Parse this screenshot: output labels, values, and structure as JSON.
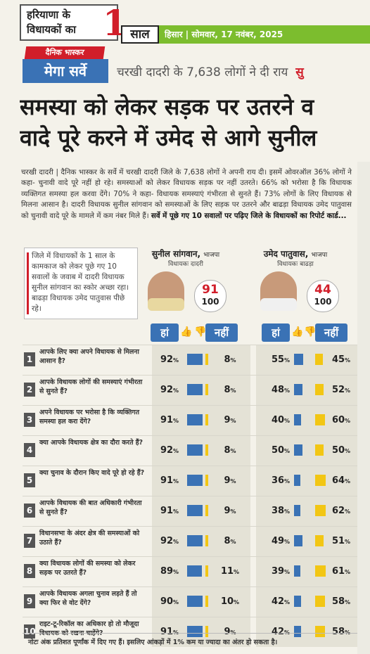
{
  "masthead": {
    "series_line1": "हरियाणा के",
    "series_line2": "विधायकों का",
    "series_num": "1",
    "series_word": "साल",
    "dateline": "हिसार | सोमवार, 17 नवंबर, 2025",
    "brand": "दैनिक भास्कर",
    "survey": "मेगा सर्वे",
    "subhead": "चरखी दादरी के 7,638 लोगों ने दी राय",
    "subhead_cut": "सु"
  },
  "headline": [
    "समस्या को लेकर सड़क पर उतरने व",
    "वादे पूरे करने में उमेद से आगे सुनील"
  ],
  "body_text": "चरखी दादरी | दैनिक भास्कर के सर्वे में चरखी दादरी जिले के 7,638 लोगों ने अपनी राय दी। इसमें ओवरऑल 36% लोगों ने कहा- चुनावी वादे पूरे नहीं हो रहे। समस्याओं को लेकर विधायक सड़क पर नहीं उतरते। 66% को भरोसा है कि विधायक व्यक्तिगत समस्या हल करवा देंगे। 70% ने कहा- विधायक समस्याएं गंभीरता से सुनते हैं। 73% लोगों के लिए विधायक से मिलना आसान है। दादरी विधायक सुनील सांगवान को समस्याओं के लिए सड़क पर उतरने और बाढड़ा विधायक उमेद पातुवास को चुनावी वादे पूरे के मामले में कम नंबर मिले हैं।",
  "body_bold": "सर्वे में पूछे गए 10 सवालों पर पढ़िए जिले के विधायकों का रिपोर्ट कार्ड...",
  "intro": "जिले में विधायकों के 1 साल के कामकाज को लेकर पूछे गए 10 सवालों के जवाब में दादरी विधायक सुनील सांगवान का स्कोर अच्छा रहा। बाढड़ा विधायक उमेद पातुवास पीछे रहे।",
  "candidates": [
    {
      "name": "सुनील सांगवान,",
      "party": "भाजपा",
      "role": "विधायकः दादरी",
      "score": "91",
      "total": "100"
    },
    {
      "name": "उमेद पातुवास,",
      "party": "भाजपा",
      "role": "विधायकः बाढड़ा",
      "score": "44",
      "total": "100"
    }
  ],
  "labels": {
    "yes": "हां",
    "no": "नहीं",
    "pct": "%"
  },
  "colors": {
    "yes": "#3a72b5",
    "no": "#f2c614",
    "highlight": "#d11e2a",
    "green": "#7cbd2e"
  },
  "questions": [
    {
      "num": "1",
      "text": "आपके लिए क्या अपने विधायक से मिलना आसान है?",
      "c1_yes": 92,
      "c1_no": 8,
      "c2_yes": 55,
      "c2_no": 45
    },
    {
      "num": "2",
      "text": "आपके विधायक लोगों की समस्याएं गंभीरता से सुनते हैं?",
      "c1_yes": 92,
      "c1_no": 8,
      "c2_yes": 48,
      "c2_no": 52
    },
    {
      "num": "3",
      "text": "अपने विधायक पर भरोसा है कि व्यक्तिगत समस्या हल करा देंगे?",
      "c1_yes": 91,
      "c1_no": 9,
      "c2_yes": 40,
      "c2_no": 60
    },
    {
      "num": "4",
      "text": "क्या आपके विधायक क्षेत्र का दौरा करते हैं?",
      "c1_yes": 92,
      "c1_no": 8,
      "c2_yes": 50,
      "c2_no": 50
    },
    {
      "num": "5",
      "text": "क्या चुनाव के दौरान किए वादे पूरे हो रहे हैं?",
      "c1_yes": 91,
      "c1_no": 9,
      "c2_yes": 36,
      "c2_no": 64
    },
    {
      "num": "6",
      "text": "आपके विधायक की बात अधिकारी गंभीरता से सुनते हैं?",
      "c1_yes": 91,
      "c1_no": 9,
      "c2_yes": 38,
      "c2_no": 62
    },
    {
      "num": "7",
      "text": "विधानसभा के अंदर क्षेत्र की समस्याओं को उठाते हैं?",
      "c1_yes": 92,
      "c1_no": 8,
      "c2_yes": 49,
      "c2_no": 51
    },
    {
      "num": "8",
      "text": "क्या विधायक लोगों की समस्या को लेकर सड़क पर उतरते हैं?",
      "c1_yes": 89,
      "c1_no": 11,
      "c2_yes": 39,
      "c2_no": 61
    },
    {
      "num": "9",
      "text": "आपके विधायक अगला चुनाव लड़ते हैं तो क्या फिर से वोट देंगे?",
      "c1_yes": 90,
      "c1_no": 10,
      "c2_yes": 42,
      "c2_no": 58
    },
    {
      "num": "10",
      "text": "राइट-टू-रिकॉल का अधिकार हो तो मौजूदा विधायक को रखना चाहेंगे?",
      "c1_yes": 91,
      "c1_no": 9,
      "c2_yes": 42,
      "c2_no": 58
    }
  ],
  "note": "नोटः अंक प्रतिशत पूर्णांक में दिए गए हैं। इसलिए आंकड़ों में 1% कम या ज्यादा का अंतर हो सकता है।"
}
